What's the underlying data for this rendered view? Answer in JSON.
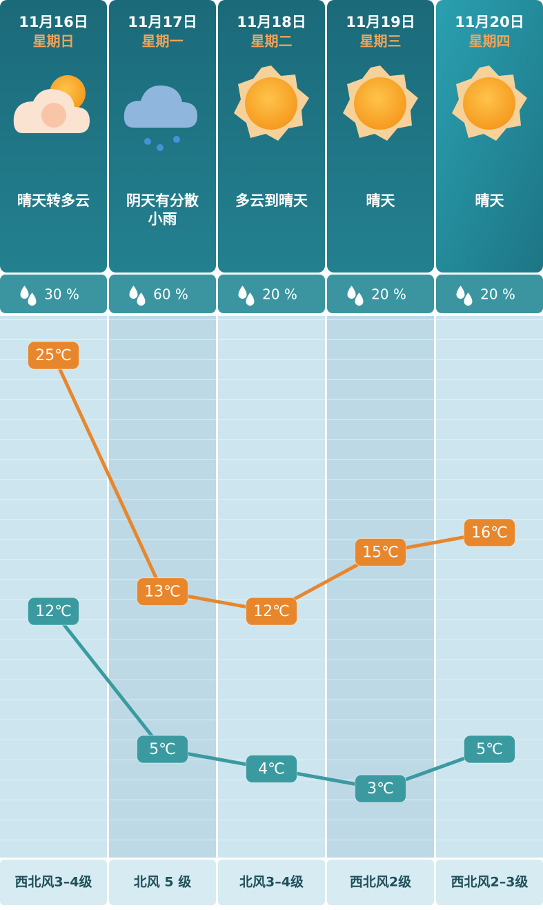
{
  "chart_data": {
    "type": "line",
    "categories": [
      "11月16日",
      "11月17日",
      "11月18日",
      "11月19日",
      "11月20日"
    ],
    "weekdays": [
      "星期日",
      "星期一",
      "星期二",
      "星期三",
      "星期四"
    ],
    "conditions": [
      "晴天转多云",
      "阴天有分散\n小雨",
      "多云到晴天",
      "晴天",
      "晴天"
    ],
    "precipitation": {
      "values": [
        30,
        60,
        20,
        20,
        20
      ],
      "value_labels": [
        "30 %",
        "60 %",
        "20 %",
        "20 %",
        "20 %"
      ]
    },
    "wind": [
      "西北风3–4级",
      "北风 5 级",
      "北风3–4级",
      "西北风2级",
      "西北风2–3级"
    ],
    "series": [
      {
        "color": "#e8862c",
        "values": [
          25,
          13,
          12,
          15,
          16
        ],
        "value_labels": [
          "25℃",
          "13℃",
          "12℃",
          "15℃",
          "16℃"
        ]
      },
      {
        "color": "#3a9aa0",
        "values": [
          12,
          5,
          4,
          3,
          5
        ],
        "value_labels": [
          "12℃",
          "5℃",
          "4℃",
          "3℃",
          "5℃"
        ]
      }
    ],
    "ylim": [
      -0.5,
      27
    ]
  }
}
